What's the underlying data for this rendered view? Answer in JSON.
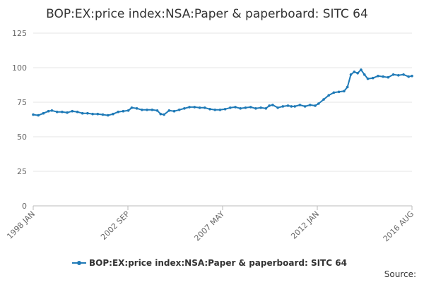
{
  "chart_data": {
    "type": "line",
    "title": "BOP:EX:price index:NSA:Paper & paperboard: SITC 64",
    "xlabel": "",
    "ylabel": "",
    "ylim": [
      0,
      125
    ],
    "y_ticks": [
      "0",
      "25",
      "50",
      "75",
      "100",
      "125"
    ],
    "x_tick_labels": [
      "1998 JAN",
      "2002 SEP",
      "2007 MAY",
      "2012 JAN",
      "2016 AUG"
    ],
    "x_range": [
      "1998-01",
      "2016-08"
    ],
    "legend": "bottom-center",
    "source_label": "Source:",
    "series": [
      {
        "name": "BOP:EX:price index:NSA:Paper & paperboard: SITC 64",
        "color": "#1f7ab7",
        "points": [
          [
            "1998-01",
            66
          ],
          [
            "1998-04",
            65.5
          ],
          [
            "1998-07",
            67
          ],
          [
            "1998-10",
            68.5
          ],
          [
            "1998-12",
            69
          ],
          [
            "1999-03",
            68
          ],
          [
            "1999-06",
            68
          ],
          [
            "1999-09",
            67.5
          ],
          [
            "1999-12",
            68.5
          ],
          [
            "2000-03",
            68
          ],
          [
            "2000-06",
            67
          ],
          [
            "2000-09",
            67
          ],
          [
            "2000-12",
            66.5
          ],
          [
            "2001-03",
            66.5
          ],
          [
            "2001-06",
            66
          ],
          [
            "2001-09",
            65.5
          ],
          [
            "2001-12",
            66.5
          ],
          [
            "2002-03",
            68
          ],
          [
            "2002-06",
            68.5
          ],
          [
            "2002-09",
            69
          ],
          [
            "2002-11",
            71
          ],
          [
            "2003-02",
            70.5
          ],
          [
            "2003-05",
            69.5
          ],
          [
            "2003-08",
            69.5
          ],
          [
            "2003-11",
            69.5
          ],
          [
            "2004-02",
            69
          ],
          [
            "2004-04",
            66.5
          ],
          [
            "2004-06",
            66
          ],
          [
            "2004-09",
            69
          ],
          [
            "2004-12",
            68.5
          ],
          [
            "2005-03",
            69.5
          ],
          [
            "2005-06",
            70.5
          ],
          [
            "2005-09",
            71.5
          ],
          [
            "2005-12",
            71.5
          ],
          [
            "2006-03",
            71
          ],
          [
            "2006-06",
            71
          ],
          [
            "2006-09",
            70
          ],
          [
            "2006-12",
            69.5
          ],
          [
            "2007-03",
            69.5
          ],
          [
            "2007-06",
            70
          ],
          [
            "2007-09",
            71
          ],
          [
            "2007-12",
            71.5
          ],
          [
            "2008-03",
            70.5
          ],
          [
            "2008-06",
            71
          ],
          [
            "2008-09",
            71.5
          ],
          [
            "2008-12",
            70.5
          ],
          [
            "2009-03",
            71
          ],
          [
            "2009-06",
            70.5
          ],
          [
            "2009-08",
            72.5
          ],
          [
            "2009-10",
            73
          ],
          [
            "2010-01",
            71
          ],
          [
            "2010-04",
            72
          ],
          [
            "2010-07",
            72.5
          ],
          [
            "2010-09",
            72
          ],
          [
            "2010-11",
            72
          ],
          [
            "2011-02",
            73
          ],
          [
            "2011-05",
            72
          ],
          [
            "2011-08",
            73
          ],
          [
            "2011-11",
            72.5
          ],
          [
            "2012-01",
            74
          ],
          [
            "2012-04",
            77
          ],
          [
            "2012-07",
            80
          ],
          [
            "2012-10",
            82
          ],
          [
            "2013-01",
            82.5
          ],
          [
            "2013-04",
            83
          ],
          [
            "2013-06",
            86
          ],
          [
            "2013-08",
            95
          ],
          [
            "2013-10",
            97
          ],
          [
            "2013-12",
            96
          ],
          [
            "2014-02",
            98.5
          ],
          [
            "2014-04",
            95
          ],
          [
            "2014-06",
            92
          ],
          [
            "2014-09",
            92.5
          ],
          [
            "2014-12",
            94
          ],
          [
            "2015-03",
            93.5
          ],
          [
            "2015-06",
            93
          ],
          [
            "2015-09",
            95
          ],
          [
            "2015-12",
            94.5
          ],
          [
            "2016-03",
            95
          ],
          [
            "2016-06",
            93.5
          ],
          [
            "2016-08",
            94
          ]
        ]
      }
    ]
  }
}
